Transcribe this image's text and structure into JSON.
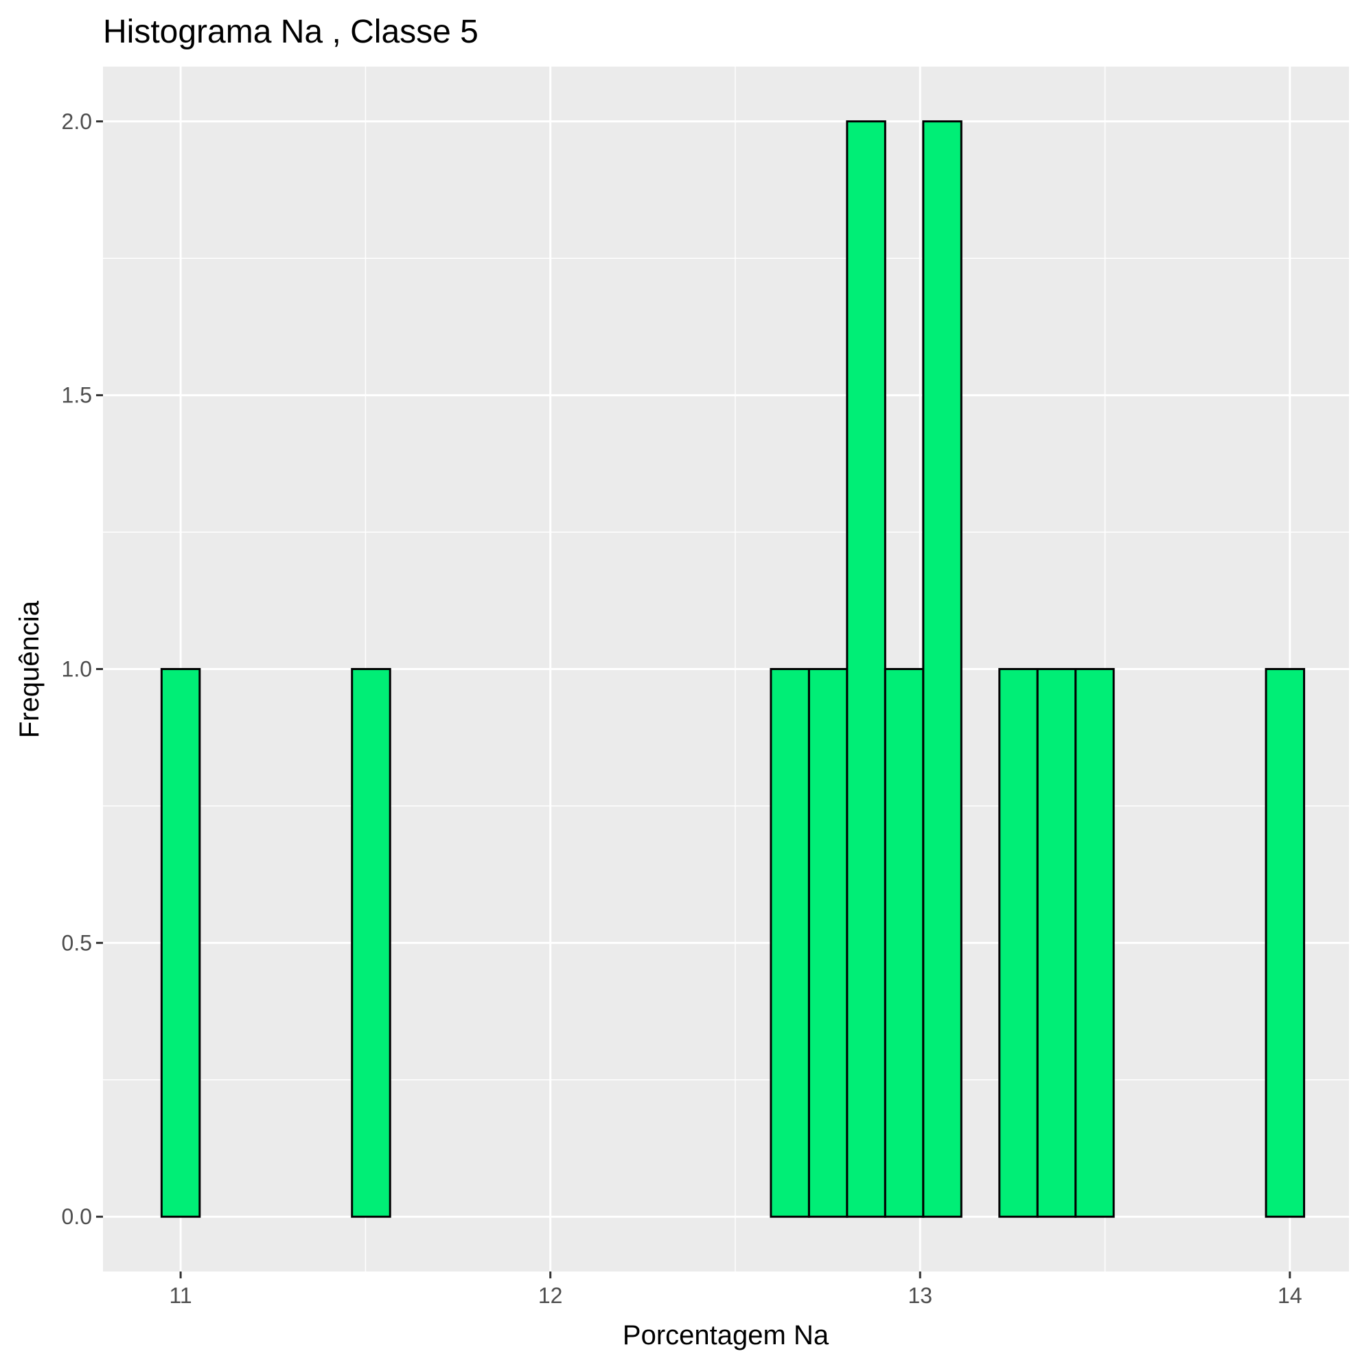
{
  "chart_data": {
    "type": "bar",
    "title": "Histograma  Na , Classe  5",
    "xlabel": "Porcentagem Na",
    "ylabel": "Frequência",
    "xlim": [
      10.79,
      14.16
    ],
    "ylim": [
      -0.1,
      2.1
    ],
    "x_ticks": [
      11,
      12,
      13,
      14
    ],
    "x_tick_labels": [
      "11",
      "12",
      "13",
      "14"
    ],
    "y_ticks": [
      0,
      0.5,
      1,
      1.5,
      2
    ],
    "y_tick_labels": [
      "0.0",
      "0.5",
      "1.0",
      "1.5",
      "2.0"
    ],
    "bin_width": 0.103,
    "bins": [
      {
        "x": 11.0,
        "count": 1
      },
      {
        "x": 11.103,
        "count": 0
      },
      {
        "x": 11.206,
        "count": 0
      },
      {
        "x": 11.309,
        "count": 0
      },
      {
        "x": 11.412,
        "count": 0
      },
      {
        "x": 11.515,
        "count": 1
      },
      {
        "x": 11.618,
        "count": 0
      },
      {
        "x": 11.721,
        "count": 0
      },
      {
        "x": 11.824,
        "count": 0
      },
      {
        "x": 11.927,
        "count": 0
      },
      {
        "x": 12.03,
        "count": 0
      },
      {
        "x": 12.133,
        "count": 0
      },
      {
        "x": 12.236,
        "count": 0
      },
      {
        "x": 12.339,
        "count": 0
      },
      {
        "x": 12.442,
        "count": 0
      },
      {
        "x": 12.545,
        "count": 0
      },
      {
        "x": 12.648,
        "count": 1
      },
      {
        "x": 12.751,
        "count": 1
      },
      {
        "x": 12.854,
        "count": 2
      },
      {
        "x": 12.957,
        "count": 1
      },
      {
        "x": 13.06,
        "count": 2
      },
      {
        "x": 13.163,
        "count": 0
      },
      {
        "x": 13.266,
        "count": 1
      },
      {
        "x": 13.369,
        "count": 1
      },
      {
        "x": 13.472,
        "count": 1
      },
      {
        "x": 13.575,
        "count": 0
      },
      {
        "x": 13.678,
        "count": 0
      },
      {
        "x": 13.781,
        "count": 0
      },
      {
        "x": 13.884,
        "count": 0
      },
      {
        "x": 13.987,
        "count": 1
      }
    ],
    "grid": true,
    "panel_color": "#ebebeb",
    "grid_color": "#ffffff",
    "bar_fill": "#00ee76",
    "bar_stroke": "#000000"
  }
}
